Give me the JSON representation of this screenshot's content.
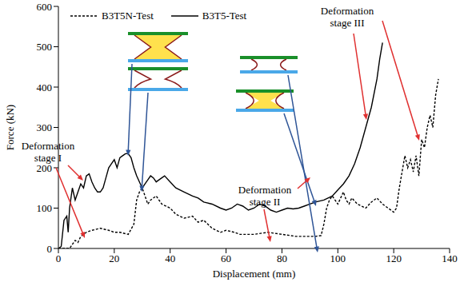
{
  "chart_data": {
    "type": "line",
    "x_label": "Displacement (mm)",
    "y_label": "Force (kN)",
    "xlim": [
      0,
      140
    ],
    "xticks": [
      0,
      20,
      40,
      60,
      80,
      100,
      120,
      140
    ],
    "ylim": [
      0,
      600
    ],
    "yticks": [
      0,
      100,
      200,
      300,
      400,
      500,
      600
    ],
    "grid": false,
    "legend": "upper left",
    "annotations": [
      "Deformation stage I",
      "Deformation stage II",
      "Deformation stage III"
    ],
    "series": [
      {
        "name": "B3T5N-Test",
        "color": "#000000",
        "line_style": "dashed",
        "x": [
          0,
          4,
          5,
          6,
          7,
          8,
          10,
          12,
          15,
          18,
          20,
          22,
          25,
          27,
          28,
          29,
          30,
          31,
          32,
          33,
          35,
          37,
          40,
          42,
          45,
          48,
          50,
          52,
          55,
          58,
          60,
          63,
          65,
          70,
          75,
          80,
          85,
          88,
          92,
          94,
          95,
          96,
          97,
          98,
          99,
          100,
          101,
          102,
          103,
          104,
          105,
          107,
          110,
          112,
          114,
          116,
          118,
          120,
          121,
          122,
          123,
          124,
          125,
          126,
          127,
          128,
          129,
          130,
          131,
          132,
          133,
          134,
          135,
          136
        ],
        "values": [
          0,
          0,
          10,
          20,
          15,
          30,
          40,
          45,
          50,
          45,
          40,
          40,
          35,
          60,
          120,
          140,
          150,
          130,
          110,
          120,
          130,
          110,
          100,
          85,
          75,
          80,
          65,
          70,
          50,
          40,
          45,
          40,
          35,
          35,
          40,
          35,
          30,
          30,
          30,
          32,
          60,
          100,
          120,
          130,
          120,
          110,
          125,
          140,
          120,
          110,
          125,
          110,
          100,
          115,
          125,
          110,
          100,
          90,
          100,
          150,
          190,
          230,
          200,
          220,
          190,
          230,
          180,
          270,
          250,
          300,
          330,
          300,
          380,
          420
        ]
      },
      {
        "name": "B3T5-Test",
        "color": "#000000",
        "line_style": "solid",
        "x": [
          0,
          1,
          2,
          3,
          3.5,
          4,
          5,
          6,
          7,
          8,
          9,
          10,
          11,
          12,
          13,
          14,
          15,
          16,
          17,
          18,
          19,
          20,
          21,
          22,
          23,
          24,
          25,
          26,
          27,
          28,
          29,
          30,
          31,
          32,
          33,
          34,
          35,
          36,
          37,
          38,
          40,
          42,
          45,
          48,
          50,
          52,
          55,
          58,
          60,
          62,
          64,
          66,
          68,
          70,
          72,
          74,
          76,
          78,
          80,
          82,
          84,
          86,
          88,
          90,
          92,
          95,
          98,
          100,
          102,
          104,
          106,
          108,
          110,
          112,
          114,
          115,
          116
        ],
        "values": [
          0,
          5,
          70,
          80,
          40,
          100,
          150,
          120,
          140,
          160,
          150,
          180,
          185,
          165,
          150,
          140,
          140,
          150,
          175,
          200,
          210,
          220,
          200,
          225,
          230,
          235,
          235,
          225,
          200,
          180,
          165,
          150,
          160,
          170,
          180,
          175,
          165,
          170,
          175,
          180,
          165,
          150,
          140,
          130,
          125,
          115,
          110,
          100,
          95,
          100,
          110,
          105,
          95,
          100,
          110,
          105,
          95,
          90,
          95,
          100,
          98,
          100,
          105,
          110,
          115,
          120,
          130,
          145,
          160,
          180,
          210,
          250,
          300,
          350,
          420,
          470,
          510
        ]
      }
    ]
  }
}
